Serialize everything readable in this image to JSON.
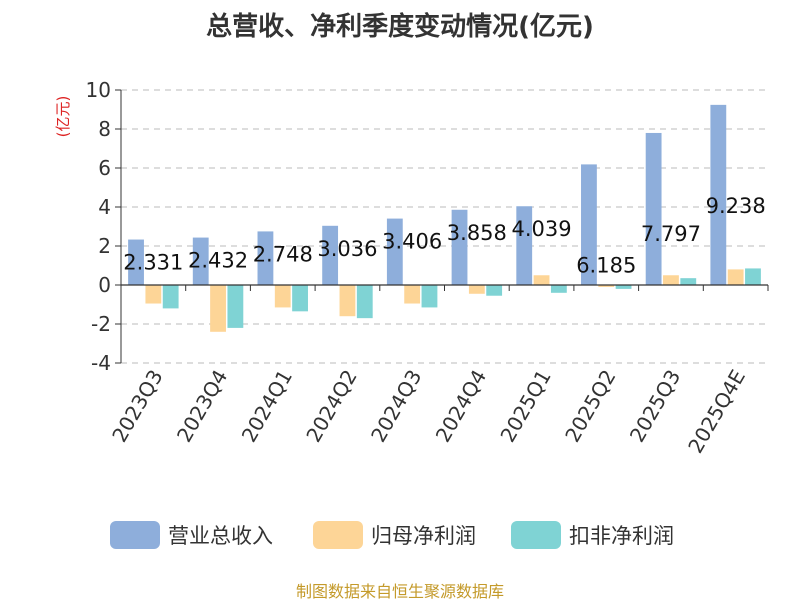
{
  "chart_data": {
    "type": "bar",
    "title": "总营收、净利季度变动情况(亿元)",
    "ylabel": "(亿元)",
    "xlabel": "",
    "ylim": [
      -4,
      10
    ],
    "yticks": [
      10,
      8,
      6,
      4,
      2,
      0,
      -2,
      -4
    ],
    "grid": true,
    "legend_position": "bottom",
    "categories": [
      "2023Q3",
      "2023Q4",
      "2024Q1",
      "2024Q2",
      "2024Q3",
      "2024Q4",
      "2025Q1",
      "2025Q2",
      "2025Q3",
      "2025Q4E"
    ],
    "series": [
      {
        "name": "营业总收入",
        "color": "#8eaedb",
        "values": [
          2.331,
          2.432,
          2.748,
          3.036,
          3.406,
          3.858,
          4.039,
          6.185,
          7.797,
          9.238
        ],
        "data_labels": [
          "2.331",
          "2.432",
          "2.748",
          "3.036",
          "3.406",
          "3.858",
          "4.039",
          "6.185",
          "7.797",
          "9.238"
        ]
      },
      {
        "name": "归母净利润",
        "color": "#fdd597",
        "values": [
          -0.95,
          -2.4,
          -1.15,
          -1.6,
          -0.95,
          -0.45,
          0.5,
          -0.1,
          0.5,
          0.8
        ]
      },
      {
        "name": "扣非净利润",
        "color": "#7fd3d4",
        "values": [
          -1.2,
          -2.2,
          -1.35,
          -1.7,
          -1.15,
          -0.55,
          -0.4,
          -0.2,
          0.35,
          0.85
        ]
      }
    ]
  },
  "source": "制图数据来自恒生聚源数据库"
}
